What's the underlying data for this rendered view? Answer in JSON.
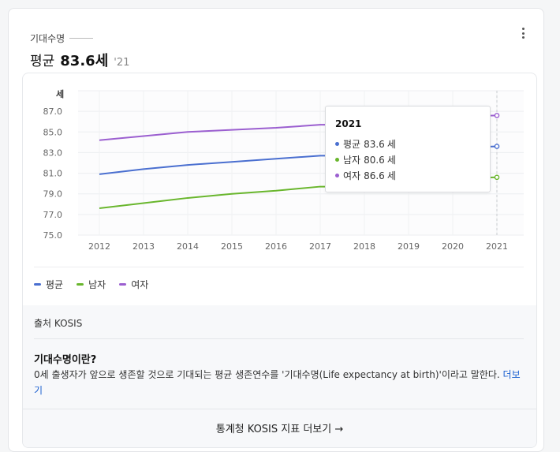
{
  "header": {
    "section_label": "기대수명",
    "headline_prefix": "평균",
    "headline_value": "83.6세",
    "headline_year": "'21"
  },
  "chart_data": {
    "type": "line",
    "title": "",
    "ylabel": "세",
    "xlabel": "",
    "ylim": [
      75.0,
      89.0
    ],
    "yticks": [
      "75.0",
      "77.0",
      "79.0",
      "81.0",
      "83.0",
      "85.0",
      "87.0"
    ],
    "categories": [
      "2012",
      "2013",
      "2014",
      "2015",
      "2016",
      "2017",
      "2018",
      "2019",
      "2020",
      "2021"
    ],
    "series": [
      {
        "name": "평균",
        "color": "#4a6fd0",
        "values": [
          80.9,
          81.4,
          81.8,
          82.1,
          82.4,
          82.7,
          82.7,
          83.3,
          83.5,
          83.6
        ]
      },
      {
        "name": "남자",
        "color": "#69b62d",
        "values": [
          77.6,
          78.1,
          78.6,
          79.0,
          79.3,
          79.7,
          79.7,
          80.3,
          80.5,
          80.6
        ]
      },
      {
        "name": "여자",
        "color": "#9b5fd0",
        "values": [
          84.2,
          84.6,
          85.0,
          85.2,
          85.4,
          85.7,
          85.7,
          86.3,
          86.5,
          86.6
        ]
      }
    ],
    "grid": true,
    "legend": "bottom-left",
    "tooltip": {
      "year": "2021",
      "unit": "세",
      "rows": [
        {
          "name": "평균",
          "value": "83.6"
        },
        {
          "name": "남자",
          "value": "80.6"
        },
        {
          "name": "여자",
          "value": "86.6"
        }
      ]
    }
  },
  "footer": {
    "source": "출처 KOSIS",
    "what_title": "기대수명이란?",
    "what_desc": "0세 출생자가 앞으로 생존할 것으로 기대되는 평균 생존연수를 '기대수명(Life expectancy at birth)'이라고 말한다.",
    "more_link": "더보기",
    "kosis_link": "통계청 KOSIS 지표 더보기 →"
  }
}
